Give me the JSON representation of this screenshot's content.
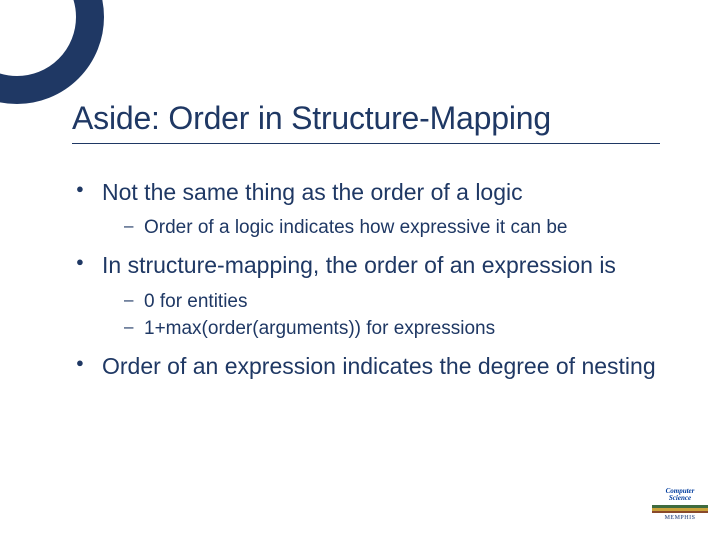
{
  "title": "Aside: Order in Structure-Mapping",
  "bullets": [
    {
      "text": "Not the same thing as the order of a logic",
      "sub": [
        "Order of a logic indicates how expressive it can be"
      ]
    },
    {
      "text": "In structure-mapping, the order of an expression is",
      "sub": [
        "0 for entities",
        "1+max(order(arguments)) for expressions"
      ]
    },
    {
      "text": "Order of an expression indicates the degree of nesting",
      "sub": []
    }
  ],
  "logo": {
    "top": "Computer",
    "bottom": "Science",
    "footer": "MEMPHIS"
  },
  "colors": {
    "primary": "#1f3864",
    "background": "#ffffff"
  }
}
